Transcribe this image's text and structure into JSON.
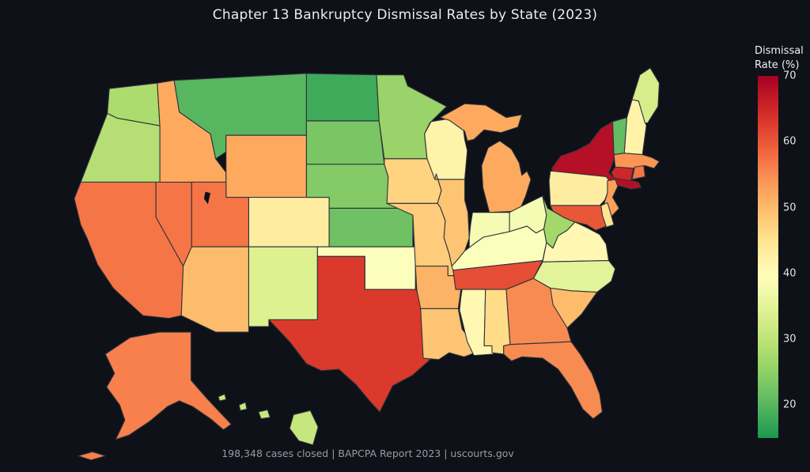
{
  "title": "Chapter 13 Bankruptcy Dismissal Rates by State (2023)",
  "footer": "198,348 cases closed  |  BAPCPA Report 2023  |  uscourts.gov",
  "colors": {
    "background": "#0e1117",
    "title_text": "#e9edf2",
    "footer_text": "#969ca4",
    "tick_text": "#e2e6ea",
    "state_border": "#2e333b",
    "water": "#0e1117"
  },
  "colorbar": {
    "title_lines": [
      "Dismissal",
      "Rate (%)"
    ],
    "ticks": [
      70,
      60,
      50,
      40,
      30,
      20
    ],
    "value_range": [
      15,
      70
    ]
  },
  "chart_data": {
    "type": "choropleth",
    "title": "Chapter 13 Bankruptcy Dismissal Rates by State (2023)",
    "colorbar_title": "Dismissal Rate (%)",
    "value_unit": "%",
    "color_domain": [
      15,
      70
    ],
    "colorscale": [
      "#1a9850",
      "#66bd63",
      "#a6d96a",
      "#d9ef8b",
      "#ffffbf",
      "#fee08b",
      "#fdae61",
      "#f46d43",
      "#d73027",
      "#a50026"
    ],
    "states": [
      {
        "abbr": "WA",
        "name": "Washington",
        "value": 28
      },
      {
        "abbr": "OR",
        "name": "Oregon",
        "value": 29
      },
      {
        "abbr": "CA",
        "name": "California",
        "value": 57
      },
      {
        "abbr": "NV",
        "name": "Nevada",
        "value": 57
      },
      {
        "abbr": "ID",
        "name": "Idaho",
        "value": 52
      },
      {
        "abbr": "MT",
        "name": "Montana",
        "value": 20
      },
      {
        "abbr": "WY",
        "name": "Wyoming",
        "value": 52
      },
      {
        "abbr": "UT",
        "name": "Utah",
        "value": 57
      },
      {
        "abbr": "CO",
        "name": "Colorado",
        "value": 43
      },
      {
        "abbr": "AZ",
        "name": "Arizona",
        "value": 50
      },
      {
        "abbr": "NM",
        "name": "New Mexico",
        "value": 34
      },
      {
        "abbr": "ND",
        "name": "North Dakota",
        "value": 18
      },
      {
        "abbr": "SD",
        "name": "South Dakota",
        "value": 23
      },
      {
        "abbr": "NE",
        "name": "Nebraska",
        "value": 24
      },
      {
        "abbr": "KS",
        "name": "Kansas",
        "value": 22
      },
      {
        "abbr": "OK",
        "name": "Oklahoma",
        "value": 39
      },
      {
        "abbr": "TX",
        "name": "Texas",
        "value": 63
      },
      {
        "abbr": "MN",
        "name": "Minnesota",
        "value": 26
      },
      {
        "abbr": "IA",
        "name": "Iowa",
        "value": 47
      },
      {
        "abbr": "MO",
        "name": "Missouri",
        "value": 48
      },
      {
        "abbr": "AR",
        "name": "Arkansas",
        "value": 51
      },
      {
        "abbr": "LA",
        "name": "Louisiana",
        "value": 49
      },
      {
        "abbr": "WI",
        "name": "Wisconsin",
        "value": 42
      },
      {
        "abbr": "IL",
        "name": "Illinois",
        "value": 49
      },
      {
        "abbr": "MI",
        "name": "Michigan",
        "value": 52
      },
      {
        "abbr": "IN",
        "name": "Indiana",
        "value": 38
      },
      {
        "abbr": "OH",
        "name": "Ohio",
        "value": 38
      },
      {
        "abbr": "KY",
        "name": "Kentucky",
        "value": 39
      },
      {
        "abbr": "TN",
        "name": "Tennessee",
        "value": 61
      },
      {
        "abbr": "MS",
        "name": "Mississippi",
        "value": 41
      },
      {
        "abbr": "AL",
        "name": "Alabama",
        "value": 46
      },
      {
        "abbr": "GA",
        "name": "Georgia",
        "value": 55
      },
      {
        "abbr": "FL",
        "name": "Florida",
        "value": 55
      },
      {
        "abbr": "WV",
        "name": "West Virginia",
        "value": 27
      },
      {
        "abbr": "VA",
        "name": "Virginia",
        "value": 41
      },
      {
        "abbr": "NC",
        "name": "North Carolina",
        "value": 35
      },
      {
        "abbr": "SC",
        "name": "South Carolina",
        "value": 50
      },
      {
        "abbr": "PA",
        "name": "Pennsylvania",
        "value": 43
      },
      {
        "abbr": "NY",
        "name": "New York",
        "value": 68
      },
      {
        "abbr": "VT",
        "name": "Vermont",
        "value": 21
      },
      {
        "abbr": "NH",
        "name": "New Hampshire",
        "value": 42
      },
      {
        "abbr": "ME",
        "name": "Maine",
        "value": 33
      },
      {
        "abbr": "MA",
        "name": "Massachusetts",
        "value": 54
      },
      {
        "abbr": "CT",
        "name": "Connecticut",
        "value": 65
      },
      {
        "abbr": "RI",
        "name": "Rhode Island",
        "value": 57
      },
      {
        "abbr": "NJ",
        "name": "New Jersey",
        "value": 53
      },
      {
        "abbr": "DE",
        "name": "Delaware",
        "value": 45
      },
      {
        "abbr": "MD",
        "name": "Maryland",
        "value": 60
      },
      {
        "abbr": "AK",
        "name": "Alaska",
        "value": 56
      },
      {
        "abbr": "HI",
        "name": "Hawaii",
        "value": 31
      }
    ]
  }
}
